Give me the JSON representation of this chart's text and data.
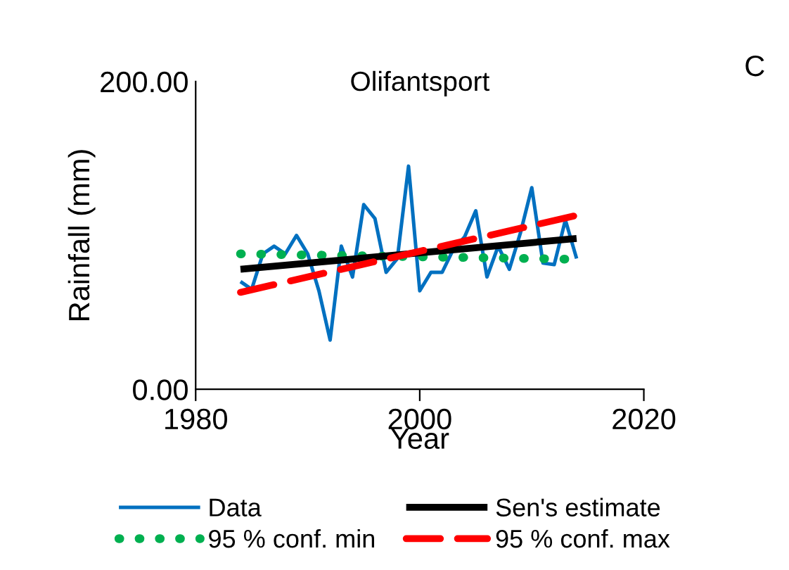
{
  "chart_data": {
    "type": "line",
    "title": "Olifantsport",
    "xlabel": "Year",
    "ylabel": "Rainfall (mm)",
    "annotations": [
      "C"
    ],
    "xlim": [
      1980,
      2020
    ],
    "xticks": [
      1980,
      2000,
      2020
    ],
    "ylim": [
      0,
      200
    ],
    "yticks": [
      {
        "value": 0,
        "label": "0.00"
      },
      {
        "value": 200,
        "label": "200.00"
      }
    ],
    "grid": false,
    "legend": "bottom",
    "series": [
      {
        "name": "Data",
        "color": "#0070c0",
        "line_style": "solid",
        "x": [
          1984,
          1985,
          1986,
          1987,
          1988,
          1989,
          1990,
          1991,
          1992,
          1993,
          1994,
          1995,
          1996,
          1997,
          1998,
          1999,
          2000,
          2001,
          2002,
          2003,
          2004,
          2005,
          2006,
          2007,
          2008,
          2009,
          2010,
          2011,
          2012,
          2013,
          2014
        ],
        "values": [
          70,
          65,
          88,
          93,
          88,
          100,
          88,
          64,
          32,
          93,
          73,
          120,
          111,
          76,
          85,
          145,
          64,
          76,
          76,
          91,
          99,
          116,
          73,
          93,
          78,
          102,
          131,
          82,
          81,
          110,
          85
        ]
      },
      {
        "name": "95 % conf. min",
        "color": "#00b050",
        "line_style": "dotted",
        "x": [
          1984,
          2014
        ],
        "values": [
          88,
          84.5
        ]
      },
      {
        "name": "Sen's estimate",
        "color": "#000000",
        "line_style": "solid",
        "x": [
          1984,
          2014
        ],
        "values": [
          78,
          98
        ]
      },
      {
        "name": "95 % conf. max",
        "color": "#ff0000",
        "line_style": "dashed",
        "x": [
          1984,
          2014
        ],
        "values": [
          63,
          113
        ]
      }
    ]
  }
}
